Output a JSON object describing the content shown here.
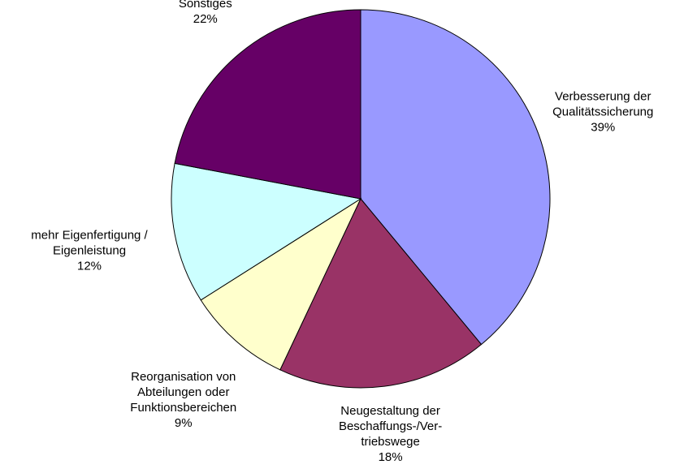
{
  "chart_data": {
    "type": "pie",
    "categories": [
      "Verbesserung der\nQualitätssicherung",
      "Neugestaltung der\nBeschaffungs-/Ver-\ntriebswege",
      "Reorganisation von\nAbteilungen oder\nFunktionsbereichen",
      "mehr Eigenfertigung /\nEigenleistung",
      "Sonstiges"
    ],
    "values": [
      39,
      18,
      9,
      12,
      22
    ],
    "value_labels": [
      "39%",
      "18%",
      "9%",
      "12%",
      "22%"
    ],
    "colors": [
      "#9999ff",
      "#993366",
      "#ffffcc",
      "#ccffff",
      "#660066"
    ]
  }
}
